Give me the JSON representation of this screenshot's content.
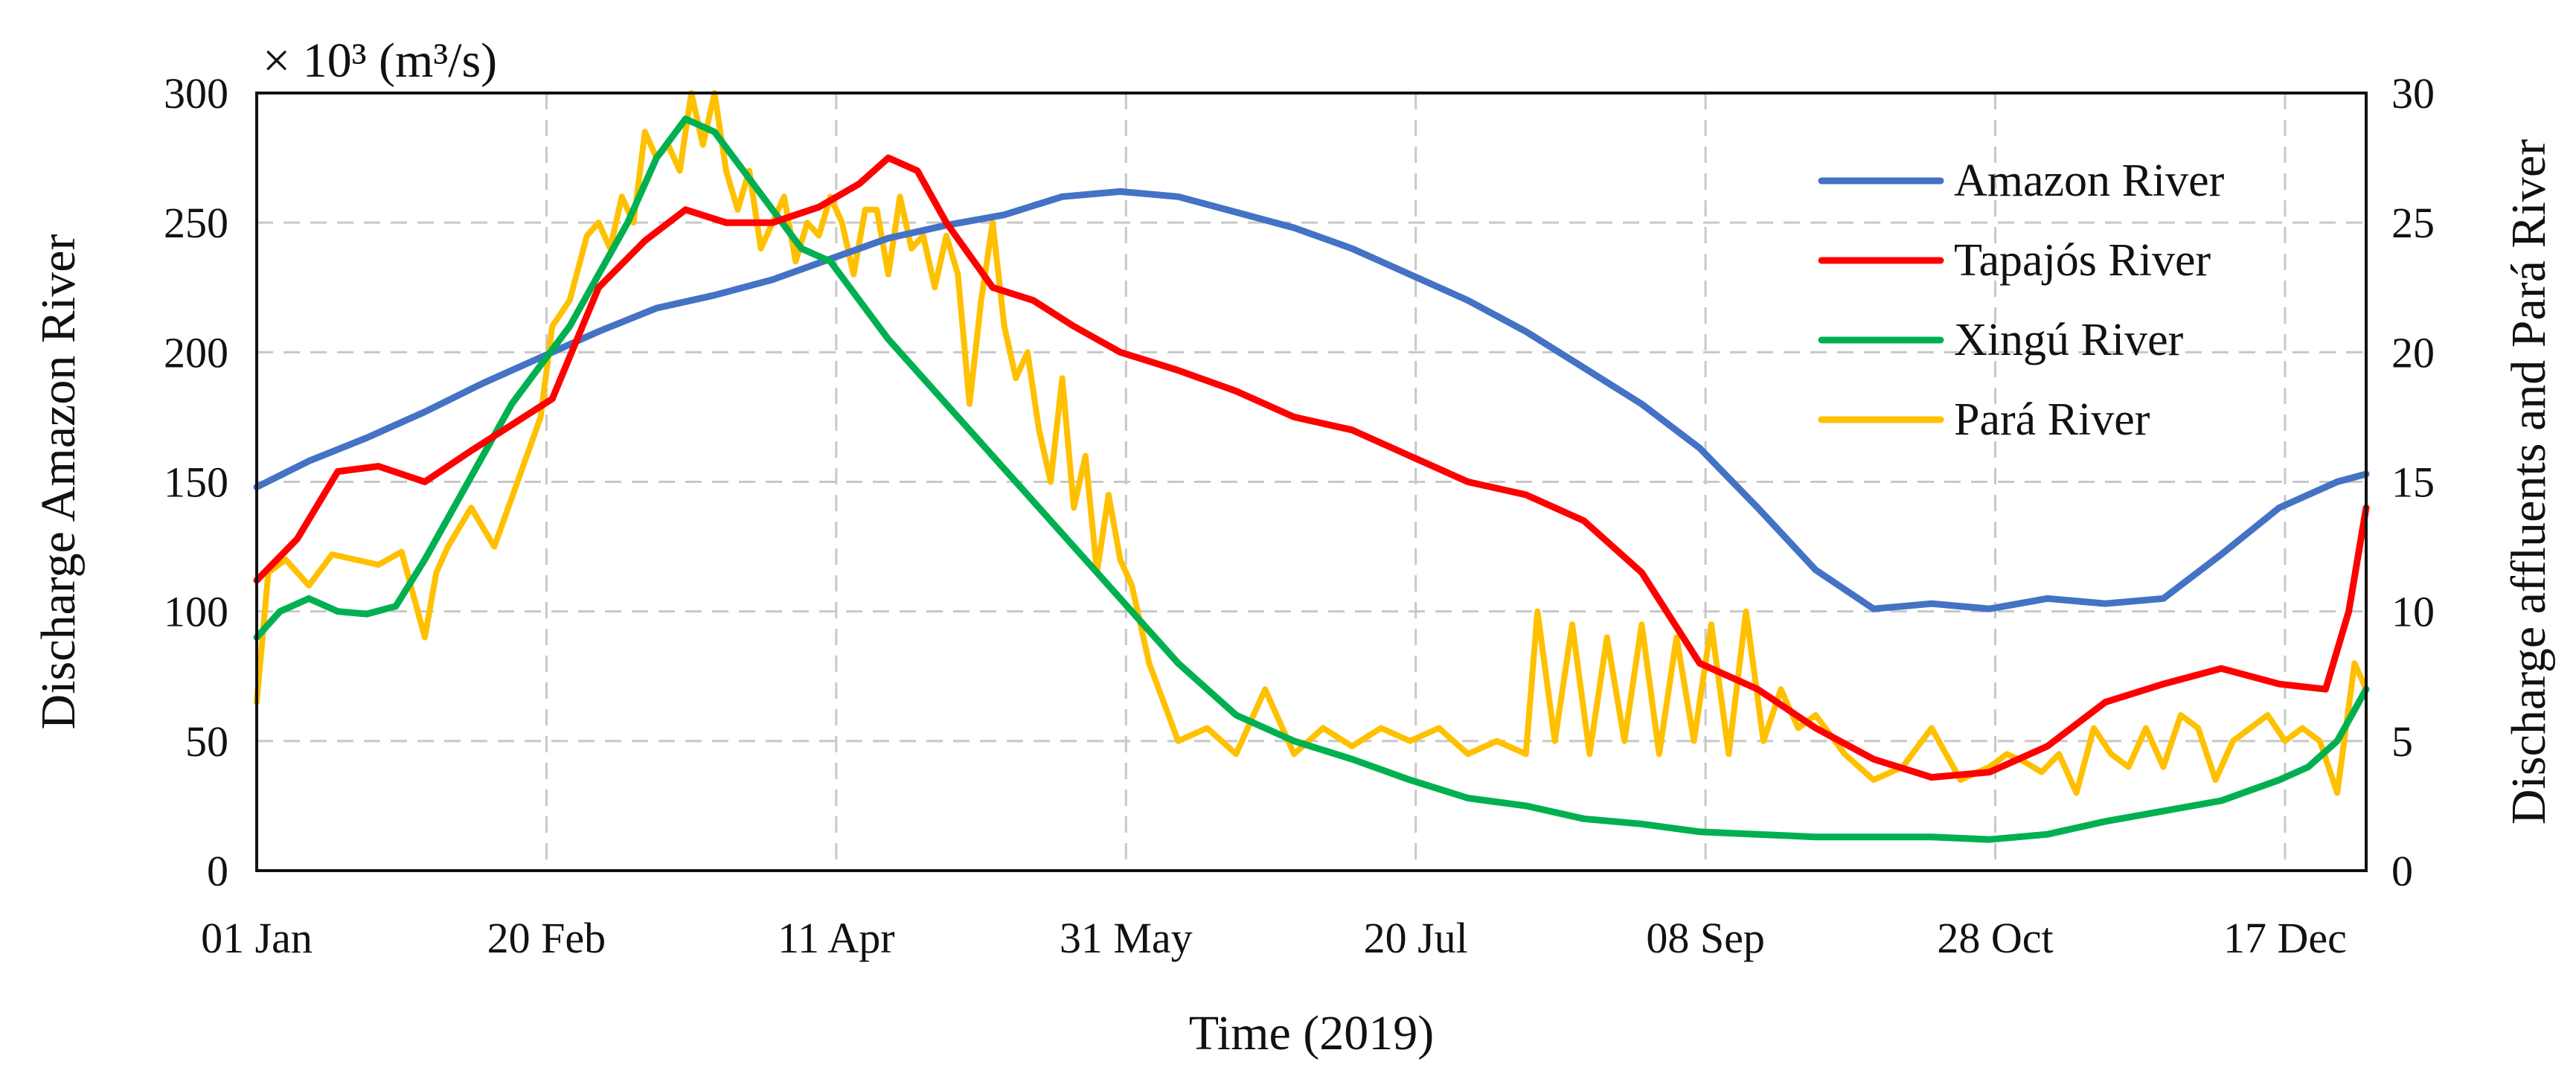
{
  "chart_data": {
    "type": "line",
    "title": "",
    "xlabel": "Time (2019)",
    "ylabel": "Discharge Amazon River",
    "ylabel_right": "Discharge affluents and Pará River",
    "unit_label": "× 10³ (m³/s)",
    "ylim": [
      0,
      300
    ],
    "y2lim": [
      0,
      30
    ],
    "xlim": [
      1,
      365
    ],
    "yticks": [
      0,
      50,
      100,
      150,
      200,
      250,
      300
    ],
    "y2ticks": [
      0,
      5,
      10,
      15,
      20,
      25,
      30
    ],
    "xticks": [
      {
        "day": 1,
        "label": "01 Jan"
      },
      {
        "day": 51,
        "label": "20 Feb"
      },
      {
        "day": 101,
        "label": "11 Apr"
      },
      {
        "day": 151,
        "label": "31 May"
      },
      {
        "day": 201,
        "label": "20 Jul"
      },
      {
        "day": 251,
        "label": "08 Sep"
      },
      {
        "day": 301,
        "label": "28 Oct"
      },
      {
        "day": 351,
        "label": "17 Dec"
      }
    ],
    "grid": true,
    "legend_position": "top-right",
    "series": [
      {
        "name": "Amazon River",
        "axis": "left",
        "color": "#4472C4",
        "x": [
          1,
          10,
          20,
          30,
          40,
          50,
          60,
          70,
          80,
          90,
          100,
          110,
          120,
          130,
          140,
          150,
          160,
          170,
          180,
          190,
          200,
          210,
          220,
          230,
          240,
          250,
          260,
          270,
          280,
          290,
          300,
          310,
          320,
          330,
          340,
          350,
          360,
          365
        ],
        "values": [
          148,
          158,
          167,
          177,
          188,
          198,
          208,
          217,
          222,
          228,
          236,
          244,
          249,
          253,
          260,
          262,
          260,
          254,
          248,
          240,
          230,
          220,
          208,
          194,
          180,
          163,
          140,
          116,
          101,
          103,
          101,
          105,
          103,
          105,
          122,
          140,
          150,
          153
        ]
      },
      {
        "name": "Tapajós River",
        "axis": "right",
        "color": "#FF0000",
        "x": [
          1,
          8,
          15,
          22,
          30,
          38,
          45,
          52,
          60,
          68,
          75,
          82,
          90,
          98,
          105,
          110,
          115,
          120,
          128,
          135,
          142,
          150,
          160,
          170,
          180,
          190,
          200,
          210,
          220,
          230,
          240,
          250,
          260,
          270,
          280,
          290,
          300,
          310,
          320,
          330,
          340,
          350,
          358,
          362,
          365
        ],
        "values": [
          11.2,
          12.8,
          15.4,
          15.6,
          15.0,
          16.2,
          17.2,
          18.2,
          22.5,
          24.3,
          25.5,
          25.0,
          25.0,
          25.6,
          26.5,
          27.5,
          27.0,
          25.0,
          22.5,
          22.0,
          21.0,
          20.0,
          19.3,
          18.5,
          17.5,
          17.0,
          16.0,
          15.0,
          14.5,
          13.5,
          11.5,
          8.0,
          7.0,
          5.5,
          4.3,
          3.6,
          3.8,
          4.8,
          6.5,
          7.2,
          7.8,
          7.2,
          7.0,
          10.0,
          14.0
        ]
      },
      {
        "name": "Xingú River",
        "axis": "right",
        "color": "#00B050",
        "x": [
          1,
          5,
          10,
          15,
          20,
          25,
          30,
          35,
          40,
          45,
          50,
          55,
          60,
          65,
          70,
          75,
          80,
          85,
          90,
          95,
          100,
          110,
          120,
          130,
          140,
          150,
          160,
          170,
          180,
          190,
          200,
          210,
          220,
          230,
          240,
          250,
          260,
          270,
          280,
          290,
          300,
          310,
          320,
          330,
          340,
          350,
          355,
          360,
          365
        ],
        "values": [
          9.0,
          10.0,
          10.5,
          10.0,
          9.9,
          10.2,
          12.0,
          14.0,
          16.0,
          18.0,
          19.5,
          21.0,
          23.0,
          25.0,
          27.5,
          29.0,
          28.5,
          27.0,
          25.5,
          24.0,
          23.5,
          20.5,
          18.0,
          15.5,
          13.0,
          10.5,
          8.0,
          6.0,
          5.0,
          4.3,
          3.5,
          2.8,
          2.5,
          2.0,
          1.8,
          1.5,
          1.4,
          1.3,
          1.3,
          1.3,
          1.2,
          1.4,
          1.9,
          2.3,
          2.7,
          3.5,
          4.0,
          5.0,
          7.0
        ]
      },
      {
        "name": "Pará River",
        "axis": "right",
        "color": "#FFC000",
        "x": [
          1,
          3,
          6,
          10,
          14,
          18,
          22,
          26,
          30,
          32,
          34,
          38,
          42,
          46,
          50,
          52,
          55,
          58,
          60,
          62,
          64,
          66,
          68,
          70,
          72,
          74,
          76,
          78,
          80,
          82,
          84,
          86,
          88,
          90,
          92,
          94,
          96,
          98,
          100,
          102,
          104,
          106,
          108,
          110,
          112,
          114,
          116,
          118,
          120,
          122,
          124,
          126,
          128,
          130,
          132,
          134,
          136,
          138,
          140,
          142,
          144,
          146,
          148,
          150,
          152,
          155,
          160,
          165,
          170,
          175,
          180,
          185,
          190,
          195,
          200,
          205,
          210,
          215,
          220,
          222,
          225,
          228,
          231,
          234,
          237,
          240,
          243,
          246,
          249,
          252,
          255,
          258,
          261,
          264,
          267,
          270,
          275,
          280,
          285,
          290,
          295,
          300,
          303,
          306,
          309,
          312,
          315,
          318,
          321,
          324,
          327,
          330,
          333,
          336,
          339,
          342,
          345,
          348,
          351,
          354,
          357,
          360,
          363,
          365
        ],
        "values": [
          6.5,
          11.5,
          12.0,
          11.0,
          12.2,
          12.0,
          11.8,
          12.3,
          9.0,
          11.5,
          12.5,
          14.0,
          12.5,
          15.0,
          17.5,
          21.0,
          22.0,
          24.5,
          25.0,
          24.0,
          26.0,
          25.0,
          28.5,
          27.5,
          28.0,
          27.0,
          30.0,
          28.0,
          30.0,
          27.0,
          25.5,
          27.0,
          24.0,
          25.0,
          26.0,
          23.5,
          25.0,
          24.5,
          26.0,
          25.0,
          23.0,
          25.5,
          25.5,
          23.0,
          26.0,
          24.0,
          24.5,
          22.5,
          24.5,
          23.0,
          18.0,
          22.0,
          25.0,
          21.0,
          19.0,
          20.0,
          17.0,
          15.0,
          19.0,
          14.0,
          16.0,
          11.5,
          14.5,
          12.0,
          11.0,
          8.0,
          5.0,
          5.5,
          4.5,
          7.0,
          4.5,
          5.5,
          4.8,
          5.5,
          5.0,
          5.5,
          4.5,
          5.0,
          4.5,
          10.0,
          5.0,
          9.5,
          4.5,
          9.0,
          5.0,
          9.5,
          4.5,
          9.0,
          5.0,
          9.5,
          4.5,
          10.0,
          5.0,
          7.0,
          5.5,
          6.0,
          4.5,
          3.5,
          4.0,
          5.5,
          3.5,
          4.0,
          4.5,
          4.2,
          3.8,
          4.5,
          3.0,
          5.5,
          4.5,
          4.0,
          5.5,
          4.0,
          6.0,
          5.5,
          3.5,
          5.0,
          5.5,
          6.0,
          5.0,
          5.5,
          5.0,
          3.0,
          8.0,
          7.0
        ]
      }
    ]
  }
}
